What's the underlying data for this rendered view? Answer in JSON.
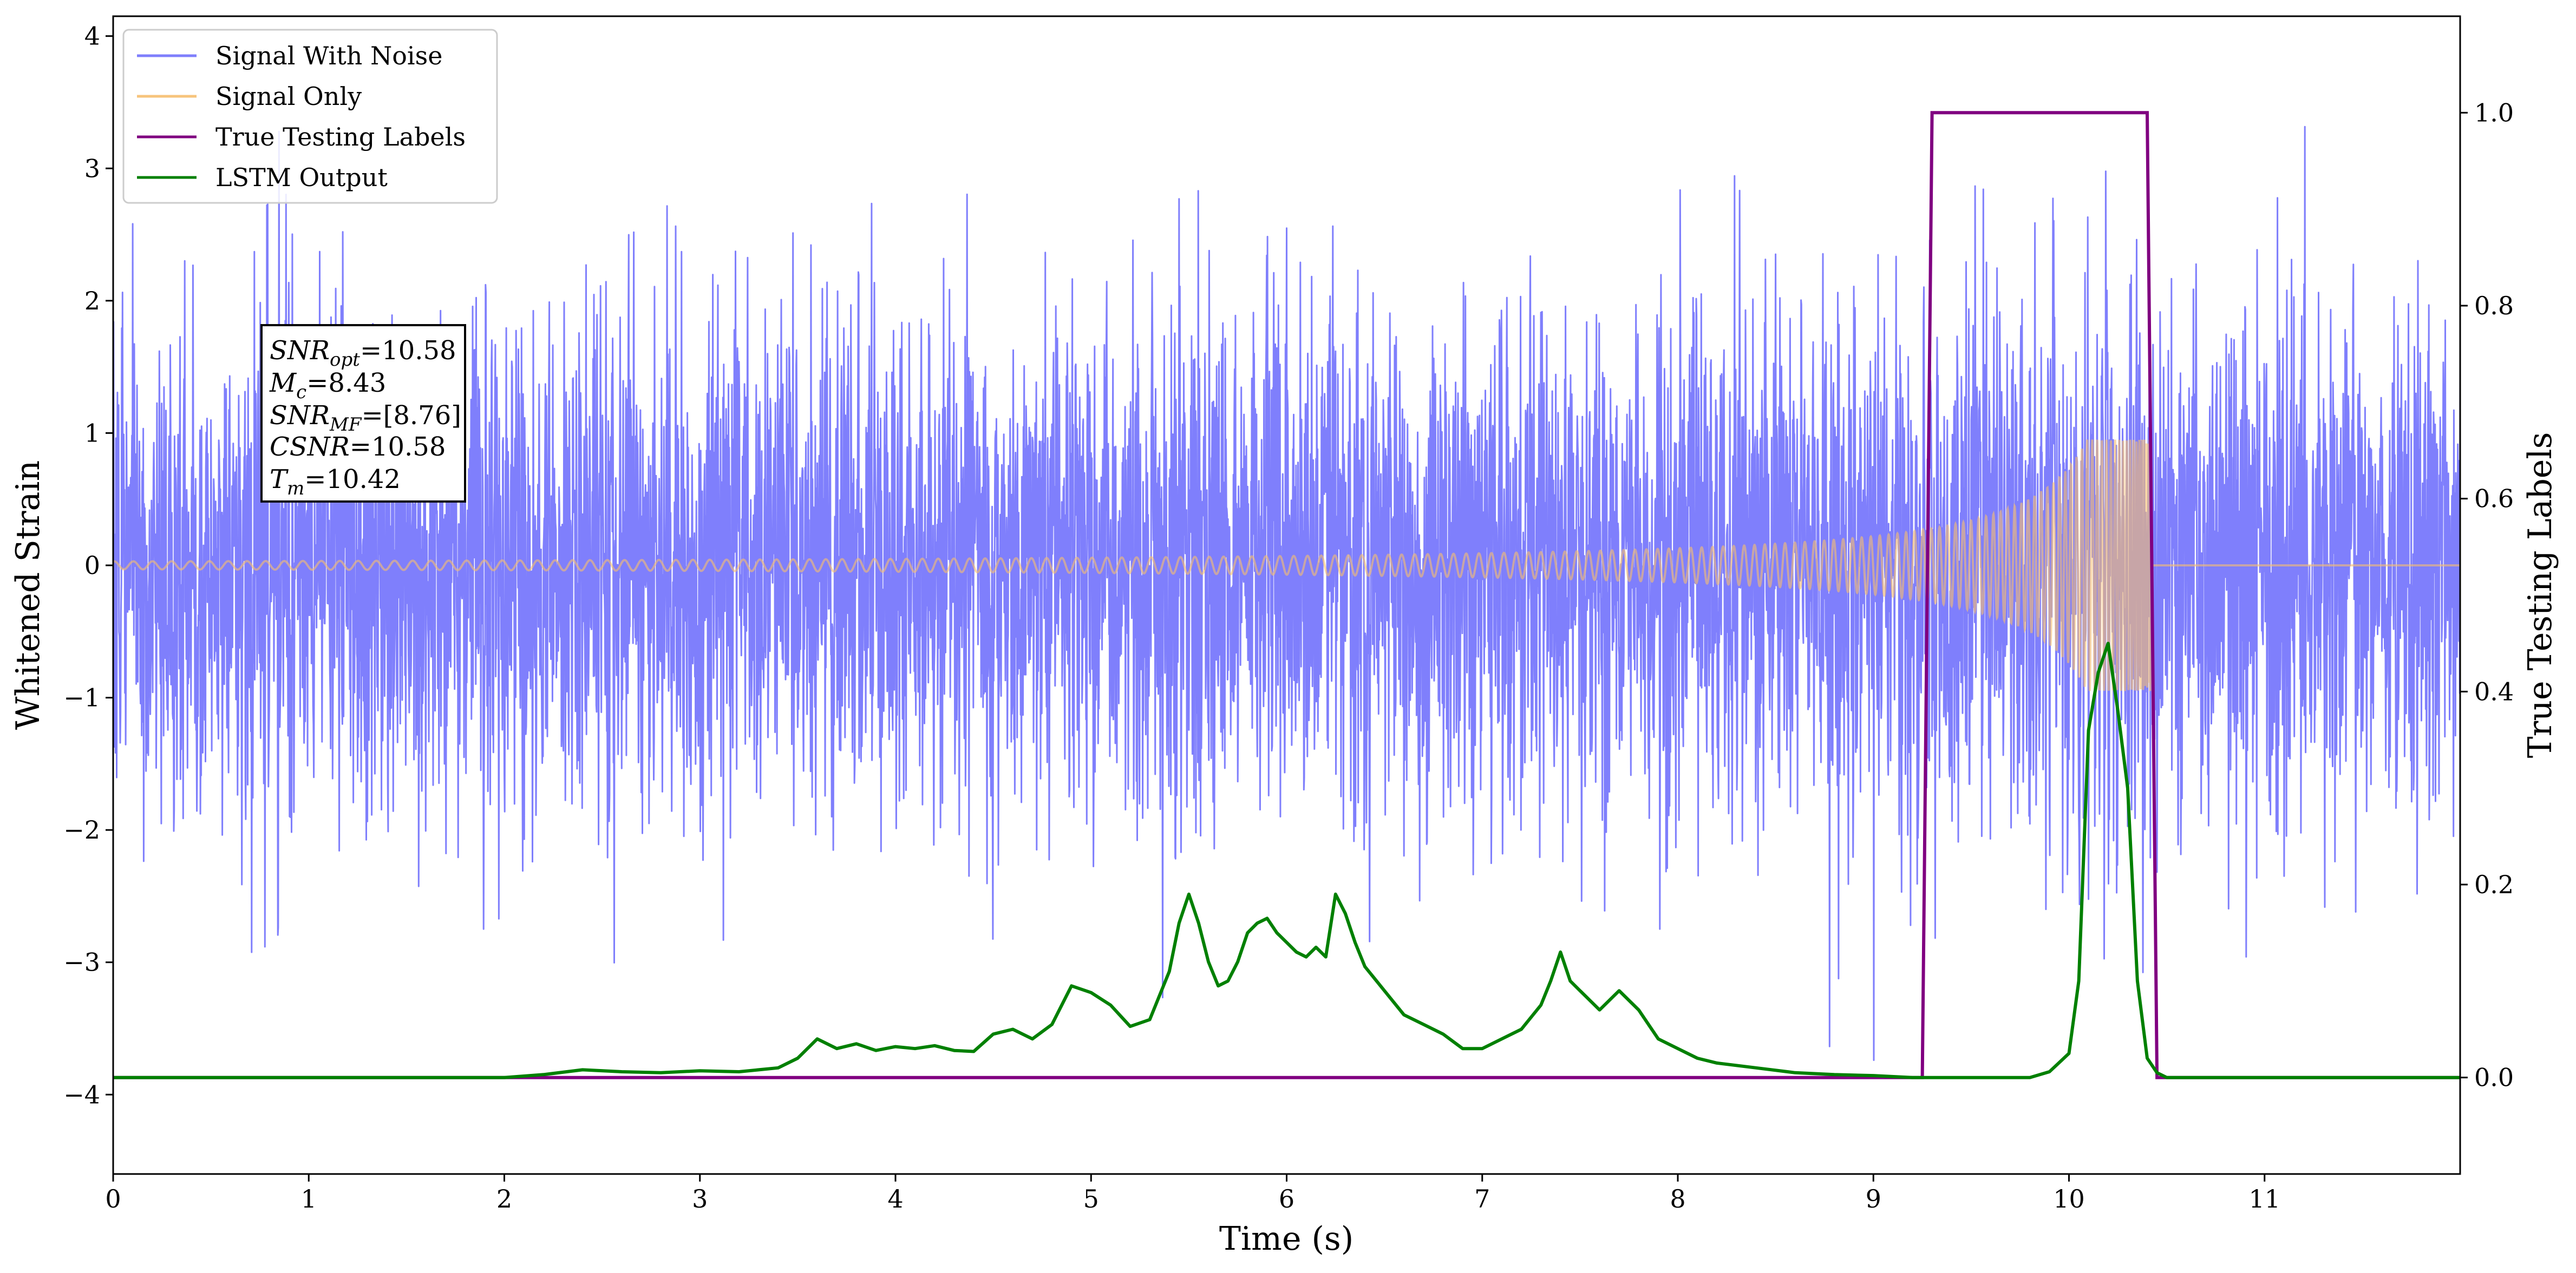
{
  "chart_data": {
    "type": "line",
    "xlabel": "Time (s)",
    "ylabel": "Whitened Strain",
    "y2label": "True Testing Labels",
    "xlim": [
      0,
      12
    ],
    "ylim": [
      -4.6,
      4.15
    ],
    "y2lim": [
      -0.1,
      1.1
    ],
    "xticks": [
      "0",
      "1",
      "2",
      "3",
      "4",
      "5",
      "6",
      "7",
      "8",
      "9",
      "10",
      "11"
    ],
    "yticks": [
      "−4",
      "−3",
      "−2",
      "−1",
      "0",
      "1",
      "2",
      "3",
      "4"
    ],
    "y2ticks": [
      "0.0",
      "0.2",
      "0.4",
      "0.6",
      "0.8",
      "1.0"
    ],
    "grid": false,
    "legend_position": "top-left",
    "legend": [
      "Signal With Noise",
      "Signal Only",
      "True Testing Labels",
      "LSTM Output"
    ],
    "colors": {
      "noise": "#7f7ffc",
      "signal": "#f6be6e",
      "labels": "#800080",
      "lstm": "#008000"
    },
    "annotation": {
      "snr_opt_base": "SNR",
      "snr_opt_sub": "opt",
      "snr_opt_val": "=10.58",
      "mc_base": "M",
      "mc_sub": "c",
      "mc_val": "=8.43",
      "snr_mf_base": "SNR",
      "snr_mf_sub": "MF",
      "snr_mf_val": "=[8.76]",
      "csnr_base": "CSNR",
      "csnr_val": "=10.58",
      "tm_base": "T",
      "tm_sub": "m",
      "tm_val": "=10.42"
    },
    "series": [
      {
        "name": "Signal With Noise",
        "axis": "left",
        "description_noise_std": 0.95,
        "x_range": [
          0,
          12
        ]
      },
      {
        "name": "Signal Only",
        "axis": "left",
        "chirp_end": 10.42,
        "amplitude_start": 0.03,
        "amplitude_end": 0.95
      },
      {
        "name": "True Testing Labels",
        "axis": "right",
        "x": [
          0,
          9.25,
          9.3,
          10.4,
          10.45,
          12
        ],
        "y": [
          0,
          0,
          1,
          1,
          0,
          0
        ]
      },
      {
        "name": "LSTM Output",
        "axis": "right",
        "x": [
          0,
          0.5,
          1.0,
          1.5,
          2.0,
          2.2,
          2.4,
          2.6,
          2.8,
          3.0,
          3.2,
          3.4,
          3.5,
          3.6,
          3.7,
          3.8,
          3.9,
          4.0,
          4.1,
          4.2,
          4.3,
          4.4,
          4.5,
          4.6,
          4.7,
          4.8,
          4.9,
          5.0,
          5.1,
          5.2,
          5.3,
          5.4,
          5.45,
          5.5,
          5.55,
          5.6,
          5.65,
          5.7,
          5.75,
          5.8,
          5.85,
          5.9,
          5.95,
          6.0,
          6.05,
          6.1,
          6.15,
          6.2,
          6.25,
          6.3,
          6.35,
          6.4,
          6.5,
          6.6,
          6.7,
          6.8,
          6.9,
          7.0,
          7.1,
          7.2,
          7.3,
          7.35,
          7.4,
          7.45,
          7.5,
          7.6,
          7.7,
          7.8,
          7.9,
          8.0,
          8.1,
          8.2,
          8.4,
          8.6,
          8.8,
          9.0,
          9.2,
          9.4,
          9.6,
          9.8,
          9.9,
          10.0,
          10.05,
          10.1,
          10.15,
          10.2,
          10.25,
          10.3,
          10.35,
          10.4,
          10.45,
          10.5,
          11,
          12
        ],
        "y": [
          0.0,
          0.0,
          0.0,
          0.0,
          0.0,
          0.003,
          0.008,
          0.006,
          0.005,
          0.007,
          0.006,
          0.01,
          0.02,
          0.04,
          0.03,
          0.035,
          0.028,
          0.032,
          0.03,
          0.033,
          0.028,
          0.027,
          0.045,
          0.05,
          0.04,
          0.055,
          0.095,
          0.088,
          0.075,
          0.053,
          0.06,
          0.11,
          0.16,
          0.19,
          0.16,
          0.12,
          0.095,
          0.1,
          0.12,
          0.15,
          0.16,
          0.165,
          0.15,
          0.14,
          0.13,
          0.125,
          0.135,
          0.125,
          0.19,
          0.17,
          0.14,
          0.115,
          0.09,
          0.065,
          0.055,
          0.045,
          0.03,
          0.03,
          0.04,
          0.05,
          0.075,
          0.1,
          0.13,
          0.1,
          0.09,
          0.07,
          0.09,
          0.07,
          0.04,
          0.03,
          0.02,
          0.015,
          0.01,
          0.005,
          0.003,
          0.002,
          0.0,
          0.0,
          0.0,
          0.0,
          0.006,
          0.025,
          0.1,
          0.36,
          0.42,
          0.45,
          0.38,
          0.3,
          0.1,
          0.02,
          0.005,
          0.0,
          0.0,
          0.0
        ]
      }
    ]
  }
}
